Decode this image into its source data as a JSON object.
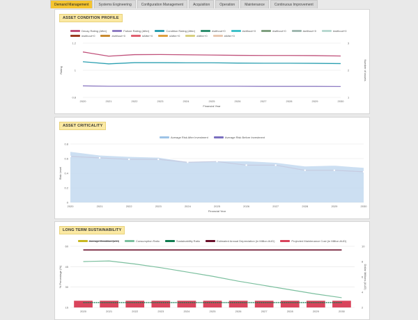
{
  "tabs": [
    {
      "label": "Demand Management",
      "active": true
    },
    {
      "label": "Systems Engineering",
      "active": false
    },
    {
      "label": "Configuration Management",
      "active": false
    },
    {
      "label": "Acquisition",
      "active": false
    },
    {
      "label": "Operation",
      "active": false
    },
    {
      "label": "Maintenance",
      "active": false
    },
    {
      "label": "Continuous Improvement",
      "active": false
    }
  ],
  "panels": {
    "condition": {
      "title": "ASSET CONDITION PROFILE"
    },
    "criticality": {
      "title": "ASSET CRITICALITY"
    },
    "sustainability": {
      "title": "LONG TERM SUSTAINABILITY"
    }
  },
  "colors": {
    "accent": "#f4c430",
    "title_bg": "#fbe9a3"
  },
  "chart_data": [
    {
      "type": "line",
      "x": [
        2020,
        2021,
        2022,
        2023,
        2024,
        2025,
        2026,
        2027,
        2028,
        2029,
        2030
      ],
      "xlabel": "Financial Year",
      "ylabel": "Rating",
      "y2label": "Number of assets",
      "ylim": [
        0.8,
        1.2
      ],
      "yticks": [
        "1.2",
        "1",
        "0.8"
      ],
      "y2ticks": [
        "3",
        "2",
        "1"
      ],
      "legend_position": "top",
      "series": [
        {
          "name": "Decay Rating (After)",
          "color": "#c0507a",
          "values": [
            1.135,
            1.104,
            1.115,
            1.116,
            1.114,
            1.112,
            1.11,
            1.109,
            1.109,
            1.108,
            1.105
          ]
        },
        {
          "name": "Failure Rating (After)",
          "color": "#8e7cc3",
          "values": [
            0.885,
            0.882,
            0.882,
            0.882,
            0.882,
            0.882,
            0.882,
            0.881,
            0.881,
            0.881,
            0.88
          ]
        },
        {
          "name": "Condition Rating (After)",
          "color": "#2a9fb0",
          "values": [
            1.063,
            1.047,
            1.056,
            1.056,
            1.055,
            1.055,
            1.053,
            1.052,
            1.052,
            1.051,
            1.049
          ]
        }
      ],
      "extra_legend": [
        {
          "name": "#without+0",
          "color": "#2f8f6f"
        },
        {
          "name": "#without+0",
          "color": "#3fc1c9"
        },
        {
          "name": "#without+0",
          "color": "#7f9f7f"
        },
        {
          "name": "#without+0",
          "color": "#a0b8b0"
        },
        {
          "name": "#without+0",
          "color": "#b8d8d0"
        },
        {
          "name": "#without+0",
          "color": "#9c3b20"
        },
        {
          "name": "#without+0",
          "color": "#c98a30"
        },
        {
          "name": "#After+0",
          "color": "#e06070"
        },
        {
          "name": "#After+0",
          "color": "#e0a040"
        },
        {
          "name": "#After+0",
          "color": "#d8d080"
        },
        {
          "name": "#After+0",
          "color": "#e8c8b0"
        }
      ],
      "grid": true
    },
    {
      "type": "area",
      "x": [
        2020,
        2021,
        2022,
        2023,
        2024,
        2025,
        2026,
        2027,
        2028,
        2029,
        2030
      ],
      "xlabel": "Financial Year",
      "ylabel": "Risk Level",
      "ylim": [
        0,
        0.8
      ],
      "yticks": [
        "0.8",
        "0.6",
        "0.4",
        "0.2",
        "0"
      ],
      "legend_position": "top",
      "series": [
        {
          "name": "Average Risk After Investment",
          "color": "#9dc3e6",
          "values": [
            0.7,
            0.65,
            0.63,
            0.62,
            0.56,
            0.57,
            0.57,
            0.55,
            0.5,
            0.51,
            0.48
          ]
        },
        {
          "name": "Average Risk Before Investment",
          "color": "#7a6fbf",
          "values": [
            0.63,
            0.61,
            0.59,
            0.59,
            0.55,
            0.56,
            0.51,
            0.51,
            0.44,
            0.44,
            0.42
          ]
        }
      ],
      "grid": true
    },
    {
      "type": "bar",
      "x": [
        2020,
        2021,
        2022,
        2023,
        2024,
        2025,
        2026,
        2027,
        2028,
        2029,
        2030
      ],
      "ylabel": "% Percentage (%)",
      "y2label": "Dollar Millions (AUD)",
      "ylim": [
        50,
        60
      ],
      "yticks": [
        "60",
        "45",
        "30",
        "15"
      ],
      "y2ticks": [
        "10",
        "8",
        "6",
        "4",
        "2"
      ],
      "legend_position": "top",
      "series": [
        {
          "name": "Average Condition (a fn)",
          "color": "#c8b820",
          "hidden": true
        },
        {
          "name": "Consumption Ratio",
          "color": "#7bbf9e",
          "values": [
            57.5,
            57.6,
            57.1,
            56.5,
            55.8,
            55.1,
            54.3,
            53.6,
            52.9,
            52.2,
            51.6
          ]
        },
        {
          "name": "Sustainability Ratio",
          "color": "#0f7b4f",
          "values": [
            0.8,
            0.8,
            0.8,
            0.8,
            0.8,
            0.8,
            0.8,
            0.8,
            0.8,
            0.8,
            0.8
          ]
        },
        {
          "name": "Estimated Annual Depreciation (in Million AUD)",
          "color": "#6a0f2a",
          "values": [
            59.4,
            59.4,
            59.4,
            59.4,
            59.4,
            59.4,
            59.4,
            59.4,
            59.4,
            59.4,
            59.4
          ]
        },
        {
          "name": "Projected Maintenance Cost (in Million AUD)",
          "color": "#d9445c",
          "values": [
            1.1,
            1.1,
            1.1,
            1.1,
            1.1,
            1.1,
            1.1,
            1.1,
            1.1,
            1.1,
            1.1
          ]
        }
      ],
      "grid": true
    }
  ]
}
